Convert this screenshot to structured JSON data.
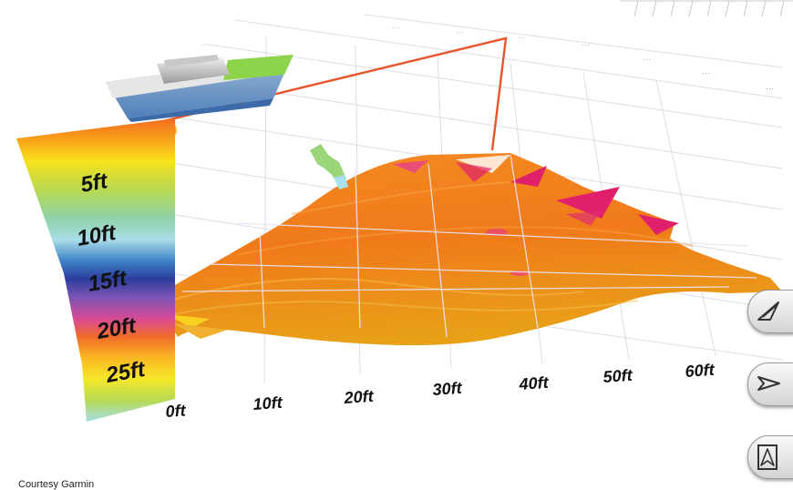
{
  "depth_scale": {
    "labels": [
      "5ft",
      "10ft",
      "15ft",
      "20ft",
      "25ft"
    ]
  },
  "distance_axis": {
    "labels": [
      "0ft",
      "10ft",
      "20ft",
      "30ft",
      "40ft",
      "50ft",
      "60ft"
    ]
  },
  "buttons": {
    "view_1_icon": "perspective-arrow-icon",
    "view_2_icon": "side-arrow-icon",
    "view_3_icon": "top-arrow-icon"
  },
  "credit": "Courtesy Garmin",
  "colors": {
    "seafloor": "#f07a1c",
    "hot_spots": "#e0206a",
    "track_line": "#e8552a",
    "grid": "#d8d8e8"
  }
}
